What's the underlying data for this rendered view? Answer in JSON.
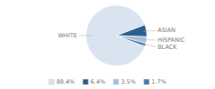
{
  "chart_data": {
    "type": "pie",
    "categories": [
      "WHITE",
      "ASIAN",
      "HISPANIC",
      "BLACK"
    ],
    "values": [
      88.4,
      6.4,
      3.5,
      1.7
    ],
    "value_labels": [
      "88.4%",
      "6.4%",
      "3.5%",
      "1.7%"
    ],
    "colors": [
      "#d9e4f0",
      "#2d5f8c",
      "#a8bfd8",
      "#4a7aab"
    ],
    "legend": "bottom"
  }
}
